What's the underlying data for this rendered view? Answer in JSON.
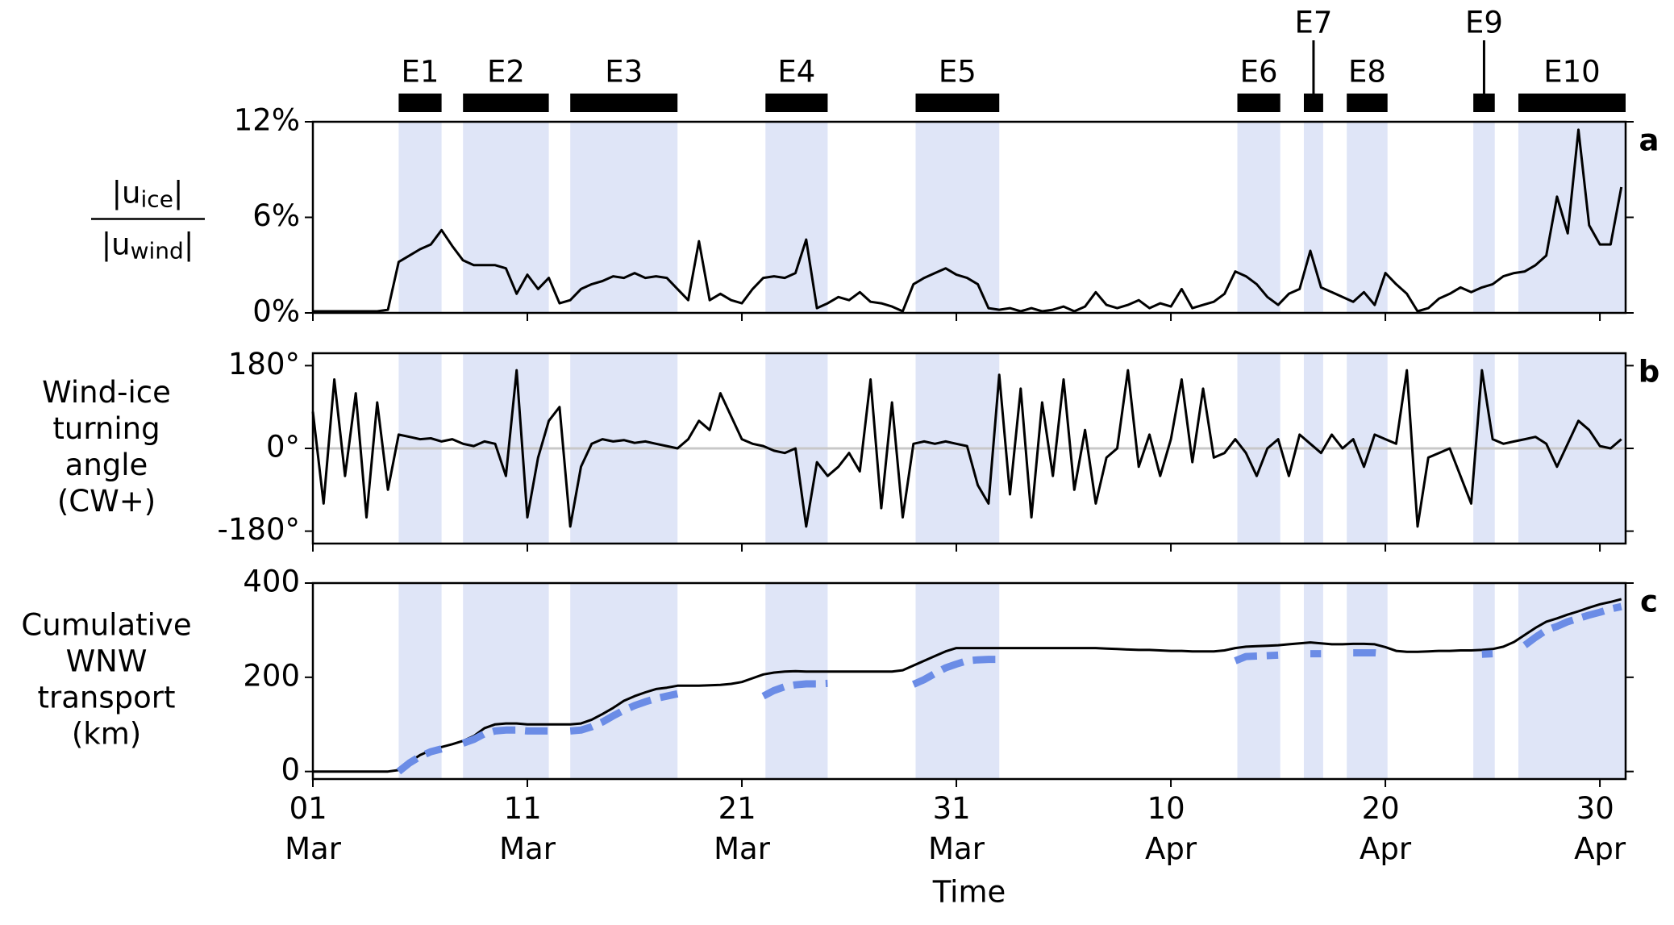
{
  "chart_data": {
    "type": "line",
    "xlabel": "Time",
    "xlim": [
      0,
      61.2
    ],
    "xticks": [
      {
        "value": 0,
        "label": "01 Mar"
      },
      {
        "value": 10,
        "label": "11 Mar"
      },
      {
        "value": 20,
        "label": "21 Mar"
      },
      {
        "value": 30,
        "label": "31 Mar"
      },
      {
        "value": 40,
        "label": "10 Apr"
      },
      {
        "value": 50,
        "label": "20 Apr"
      },
      {
        "value": 60,
        "label": "30 Apr"
      }
    ],
    "shade_color": "#dfe5f7",
    "events": [
      {
        "label": "E1",
        "start": 4.0,
        "end": 6.0
      },
      {
        "label": "E2",
        "start": 7.0,
        "end": 11.0
      },
      {
        "label": "E3",
        "start": 12.0,
        "end": 17.0
      },
      {
        "label": "E4",
        "start": 21.1,
        "end": 24.0
      },
      {
        "label": "E5",
        "start": 28.1,
        "end": 32.0
      },
      {
        "label": "E6",
        "start": 43.1,
        "end": 45.1
      },
      {
        "label": "E7",
        "start": 46.2,
        "end": 47.1
      },
      {
        "label": "E8",
        "start": 48.2,
        "end": 50.1
      },
      {
        "label": "E9",
        "start": 54.1,
        "end": 55.1
      },
      {
        "label": "E10",
        "start": 56.2,
        "end": 61.2
      }
    ],
    "x": [
      0,
      0.5,
      1,
      1.5,
      2,
      2.5,
      3,
      3.5,
      4,
      4.5,
      5,
      5.5,
      6,
      6.5,
      7,
      7.5,
      8,
      8.5,
      9,
      9.5,
      10,
      10.5,
      11,
      11.5,
      12,
      12.5,
      13,
      13.5,
      14,
      14.5,
      15,
      15.5,
      16,
      16.5,
      17,
      17.5,
      18,
      18.5,
      19,
      19.5,
      20,
      20.5,
      21,
      21.5,
      22,
      22.5,
      23,
      23.5,
      24,
      24.5,
      25,
      25.5,
      26,
      26.5,
      27,
      27.5,
      28,
      28.5,
      29,
      29.5,
      30,
      30.5,
      31,
      31.5,
      32,
      32.5,
      33,
      33.5,
      34,
      34.5,
      35,
      35.5,
      36,
      36.5,
      37,
      37.5,
      38,
      38.5,
      39,
      39.5,
      40,
      40.5,
      41,
      41.5,
      42,
      42.5,
      43,
      43.5,
      44,
      44.5,
      45,
      45.5,
      46,
      46.5,
      47,
      47.5,
      48,
      48.5,
      49,
      49.5,
      50,
      50.5,
      51,
      51.5,
      52,
      52.5,
      53,
      53.5,
      54,
      54.5,
      55,
      55.5,
      56,
      56.5,
      57,
      57.5,
      58,
      58.5,
      59,
      59.5,
      60,
      60.5,
      61
    ],
    "panels": [
      {
        "panel_label": "a",
        "ylabel": {
          "numerator": [
            "|u",
            "ice",
            "|"
          ],
          "denominator": [
            "|u",
            "wind",
            "|"
          ]
        },
        "ylim": [
          0,
          12
        ],
        "yticks": [
          {
            "value": 0,
            "label": "0%"
          },
          {
            "value": 6,
            "label": "6%"
          },
          {
            "value": 12,
            "label": "12%"
          }
        ],
        "series": [
          {
            "color": "#000000",
            "style": "solid",
            "values": [
              0.1,
              0.1,
              0.1,
              0.1,
              0.1,
              0.1,
              0.1,
              0.2,
              3.2,
              3.6,
              4.0,
              4.3,
              5.2,
              4.2,
              3.3,
              3.0,
              3.0,
              3.0,
              2.8,
              1.2,
              2.4,
              1.5,
              2.2,
              0.6,
              0.8,
              1.5,
              1.8,
              2.0,
              2.3,
              2.2,
              2.5,
              2.2,
              2.3,
              2.2,
              1.5,
              0.8,
              4.5,
              0.8,
              1.2,
              0.8,
              0.6,
              1.5,
              2.2,
              2.3,
              2.2,
              2.5,
              4.6,
              0.3,
              0.6,
              1.0,
              0.8,
              1.3,
              0.7,
              0.6,
              0.4,
              0.1,
              1.8,
              2.2,
              2.5,
              2.8,
              2.4,
              2.2,
              1.8,
              0.3,
              0.2,
              0.3,
              0.1,
              0.3,
              0.1,
              0.2,
              0.4,
              0.1,
              0.4,
              1.3,
              0.5,
              0.3,
              0.5,
              0.8,
              0.3,
              0.6,
              0.4,
              1.5,
              0.3,
              0.5,
              0.7,
              1.2,
              2.6,
              2.3,
              1.8,
              1.0,
              0.5,
              1.2,
              1.5,
              3.9,
              1.6,
              1.3,
              1.0,
              0.7,
              1.3,
              0.5,
              2.5,
              1.8,
              1.2,
              0.1,
              0.3,
              0.9,
              1.2,
              1.6,
              1.3,
              1.6,
              1.8,
              2.3,
              2.5,
              2.6,
              3.0,
              3.6,
              7.3,
              5.0,
              11.5,
              5.5,
              4.3,
              4.3,
              7.9
            ]
          }
        ]
      },
      {
        "panel_label": "b",
        "ylabel": [
          "Wind-ice",
          "turning",
          "angle",
          "(CW+)"
        ],
        "ylim": [
          -207,
          207
        ],
        "yticks": [
          {
            "value": -180,
            "label": "-180°"
          },
          {
            "value": 0,
            "label": "0°"
          },
          {
            "value": 180,
            "label": "180°"
          }
        ],
        "zero_line": true,
        "series": [
          {
            "color": "#000000",
            "style": "solid",
            "values": [
              80,
              -120,
              150,
              -60,
              120,
              -150,
              100,
              -90,
              30,
              25,
              20,
              22,
              15,
              20,
              10,
              5,
              15,
              10,
              -60,
              170,
              -150,
              -20,
              60,
              90,
              -170,
              -40,
              10,
              20,
              15,
              18,
              12,
              15,
              10,
              5,
              0,
              20,
              60,
              40,
              120,
              70,
              20,
              10,
              5,
              -5,
              -10,
              0,
              -170,
              -30,
              -60,
              -40,
              -10,
              -50,
              150,
              -130,
              100,
              -150,
              10,
              15,
              10,
              15,
              10,
              5,
              -80,
              -120,
              160,
              -100,
              130,
              -150,
              100,
              -60,
              150,
              -90,
              40,
              -120,
              -20,
              0,
              170,
              -40,
              30,
              -60,
              20,
              150,
              -30,
              130,
              -20,
              -10,
              20,
              -10,
              -60,
              0,
              20,
              -60,
              30,
              10,
              -10,
              30,
              0,
              20,
              -40,
              30,
              20,
              10,
              170,
              -170,
              -20,
              -10,
              0,
              -60,
              -120,
              170,
              20,
              10,
              15,
              20,
              25,
              10,
              -40,
              10,
              60,
              40,
              5,
              0,
              20
            ]
          }
        ]
      },
      {
        "panel_label": "c",
        "ylabel": [
          "Cumulative",
          "WNW",
          "transport",
          "(km)"
        ],
        "ylim": [
          -16,
          400
        ],
        "yticks": [
          0,
          200,
          400
        ],
        "series": [
          {
            "color": "#000000",
            "style": "solid",
            "values": [
              0,
              0,
              0,
              0,
              0,
              0,
              0,
              0,
              3,
              20,
              35,
              45,
              52,
              58,
              65,
              75,
              92,
              100,
              102,
              102,
              100,
              100,
              100,
              100,
              100,
              102,
              110,
              122,
              135,
              150,
              160,
              168,
              175,
              178,
              182,
              182,
              182,
              183,
              184,
              186,
              190,
              198,
              206,
              210,
              212,
              213,
              212,
              212,
              212,
              212,
              212,
              212,
              212,
              212,
              212,
              215,
              225,
              235,
              245,
              255,
              262,
              262,
              262,
              262,
              262,
              262,
              262,
              262,
              262,
              262,
              262,
              262,
              262,
              262,
              261,
              260,
              259,
              258,
              258,
              257,
              256,
              256,
              255,
              255,
              255,
              257,
              262,
              265,
              266,
              267,
              268,
              270,
              272,
              274,
              272,
              270,
              270,
              271,
              271,
              270,
              264,
              256,
              254,
              254,
              255,
              256,
              256,
              257,
              257,
              258,
              260,
              265,
              275,
              290,
              305,
              318,
              325,
              333,
              340,
              348,
              355,
              360,
              366
            ]
          },
          {
            "color": "#6b8ce6",
            "style": "dashed",
            "values": [
              null,
              null,
              null,
              null,
              null,
              null,
              null,
              null,
              0,
              18,
              32,
              42,
              48,
              null,
              60,
              68,
              80,
              86,
              88,
              88,
              86,
              86,
              86,
              null,
              86,
              88,
              95,
              105,
              118,
              130,
              140,
              148,
              155,
              160,
              165,
              null,
              null,
              null,
              null,
              null,
              null,
              null,
              160,
              172,
              180,
              184,
              186,
              186,
              187,
              null,
              null,
              null,
              null,
              null,
              null,
              null,
              185,
              195,
              208,
              220,
              228,
              235,
              237,
              238,
              238,
              null,
              null,
              null,
              null,
              null,
              null,
              null,
              null,
              null,
              null,
              null,
              null,
              null,
              null,
              null,
              null,
              null,
              null,
              null,
              null,
              null,
              235,
              244,
              245,
              246,
              247,
              null,
              null,
              250,
              250,
              null,
              null,
              252,
              252,
              252,
              250,
              null,
              null,
              null,
              null,
              null,
              null,
              null,
              null,
              249,
              250,
              null,
              null,
              268,
              285,
              300,
              308,
              318,
              325,
              332,
              338,
              345,
              350
            ]
          }
        ]
      }
    ]
  }
}
